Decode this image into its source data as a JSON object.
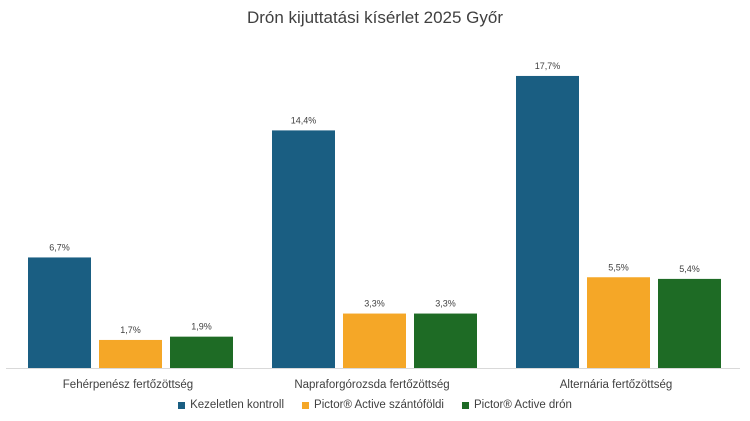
{
  "chart_data": {
    "type": "bar",
    "title": "Drón kijuttatási kísérlet 2025 Győr",
    "categories": [
      "Fehérpenész fertőzöttség",
      "Napraforgórozsda fertőzöttség",
      "Alternária fertőzöttség"
    ],
    "series": [
      {
        "name": "Kezeletlen kontroll",
        "color": "#1a5e82",
        "values": [
          6.7,
          14.4,
          17.7
        ],
        "labels": [
          "6,7%",
          "14,4%",
          "17,7%"
        ]
      },
      {
        "name": "Pictor® Active szántóföldi",
        "color": "#f5a727",
        "values": [
          1.7,
          3.3,
          5.5
        ],
        "labels": [
          "1,7%",
          "3,3%",
          "5,5%"
        ]
      },
      {
        "name": "Pictor® Active drón",
        "color": "#1e6b25",
        "values": [
          1.9,
          3.3,
          5.4
        ],
        "labels": [
          "1,9%",
          "3,3%",
          "5,4%"
        ]
      }
    ],
    "ylim": [
      0,
      20
    ],
    "grid": false,
    "legend": "bottom"
  }
}
